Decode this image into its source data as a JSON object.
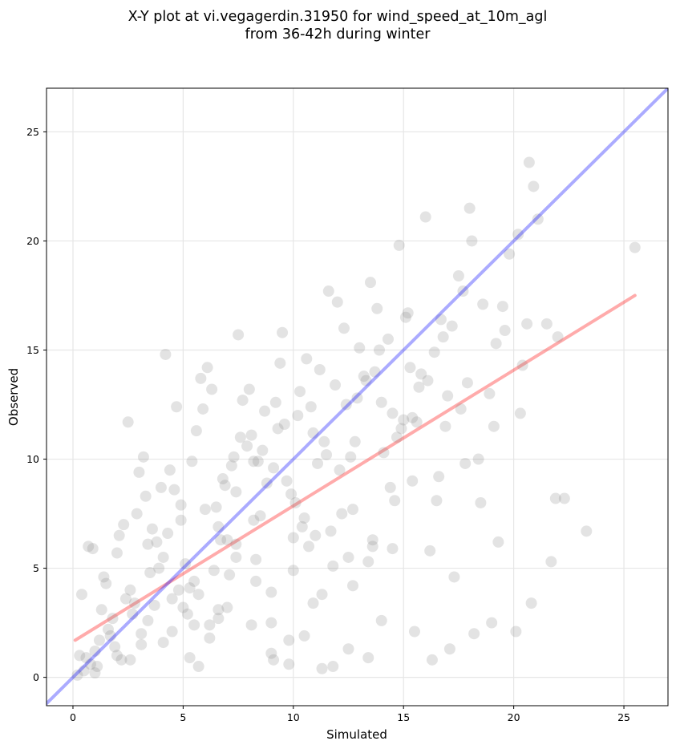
{
  "chart_data": {
    "type": "scatter",
    "title": "X-Y plot at vi.vegagerdin.31950 for wind_speed_at_10m_agl",
    "subtitle": "from 36-42h during winter",
    "xlabel": "Simulated",
    "ylabel": "Observed",
    "xlim": [
      -1.2,
      27.0
    ],
    "ylim": [
      -1.3,
      27.0
    ],
    "xticks": [
      0,
      5,
      10,
      15,
      20,
      25
    ],
    "yticks": [
      0,
      5,
      10,
      15,
      20,
      25
    ],
    "grid": true,
    "point_color": "#808080",
    "series": [
      {
        "type": "scatter",
        "x": [
          1.0,
          2.2,
          3.1,
          4.5,
          5.3,
          6.2,
          7.0,
          8.1,
          9.0,
          9.8,
          10.5,
          11.3,
          12.5,
          13.4,
          14.0,
          15.5,
          16.3,
          17.1,
          18.2,
          19.0,
          20.1,
          20.8,
          21.9,
          23.3,
          25.5,
          0.5,
          0.9,
          1.8,
          2.6,
          3.4,
          4.1,
          4.9,
          5.7,
          6.6,
          7.4,
          8.3,
          9.1,
          10.0,
          10.9,
          11.8,
          12.7,
          13.6,
          14.5,
          15.4,
          16.2,
          17.3,
          18.4,
          19.3,
          20.3,
          21.7,
          0.3,
          1.3,
          2.0,
          2.9,
          3.7,
          4.6,
          5.5,
          6.4,
          7.3,
          8.2,
          9.2,
          10.1,
          11.0,
          11.9,
          12.8,
          13.7,
          14.6,
          15.6,
          16.6,
          17.7,
          18.9,
          20.6,
          0.7,
          1.6,
          2.4,
          3.2,
          4.0,
          4.8,
          5.6,
          6.5,
          7.2,
          8.0,
          8.8,
          9.6,
          10.4,
          11.2,
          12.1,
          13.0,
          14.1,
          15.2,
          16.1,
          17.0,
          18.0,
          19.6,
          20.9,
          22.3,
          0.2,
          1.1,
          1.9,
          2.7,
          3.5,
          4.3,
          5.1,
          5.9,
          6.8,
          7.6,
          8.5,
          9.4,
          10.2,
          11.5,
          12.3,
          13.2,
          14.3,
          15.0,
          16.4,
          17.5,
          18.6,
          19.8,
          1.5,
          2.3,
          3.0,
          3.9,
          4.7,
          5.4,
          6.1,
          6.9,
          7.7,
          8.6,
          9.5,
          10.3,
          11.1,
          12.0,
          12.9,
          13.8,
          14.7,
          15.8,
          16.8,
          17.9,
          1.2,
          2.1,
          3.3,
          4.2,
          5.0,
          5.8,
          6.7,
          7.5,
          8.4,
          9.3,
          10.6,
          11.6,
          12.4,
          13.5,
          14.8,
          16.0,
          18.1,
          20.4,
          0.6,
          1.4,
          2.5,
          3.6,
          4.4,
          5.2,
          6.0,
          6.3,
          7.1,
          7.9,
          8.7,
          9.7,
          10.7,
          11.4,
          12.2,
          13.3,
          14.4,
          15.3,
          16.7,
          17.6,
          19.2,
          20.7,
          0.4,
          0.8,
          1.7,
          2.8,
          3.8,
          4.9,
          5.5,
          6.6,
          7.4,
          8.2,
          9.0,
          9.9,
          10.8,
          11.7,
          12.6,
          13.9,
          14.9,
          15.7,
          16.5,
          17.8,
          19.5,
          21.1,
          2.0,
          3.1,
          4.5,
          5.3,
          6.2,
          7.0,
          8.1,
          9.0,
          9.8,
          10.5,
          11.3,
          12.5,
          13.4,
          14.0,
          15.1,
          16.9,
          18.5,
          20.2,
          1.0,
          2.6,
          3.4,
          4.1,
          5.7,
          6.6,
          7.4,
          8.3,
          9.1,
          10.0,
          10.9,
          11.8,
          12.7,
          13.6,
          14.5,
          15.4,
          17.2,
          19.1,
          21.5,
          22.0
        ],
        "y": [
          1.2,
          0.8,
          1.5,
          2.1,
          0.9,
          1.8,
          3.2,
          2.4,
          1.1,
          0.6,
          1.9,
          0.4,
          1.3,
          0.9,
          2.6,
          2.1,
          0.8,
          1.3,
          2.0,
          2.5,
          2.1,
          3.4,
          8.2,
          6.7,
          19.7,
          0.3,
          5.9,
          2.7,
          4.0,
          6.1,
          5.5,
          7.2,
          3.8,
          6.9,
          8.5,
          4.4,
          9.6,
          6.4,
          11.2,
          5.1,
          7.7,
          6.3,
          12.1,
          9.0,
          5.8,
          4.6,
          10.0,
          6.2,
          12.1,
          5.3,
          1.0,
          3.1,
          5.7,
          7.5,
          3.3,
          8.6,
          2.4,
          4.9,
          10.1,
          7.2,
          12.6,
          8.0,
          6.5,
          13.4,
          10.8,
          14.0,
          8.1,
          11.7,
          9.2,
          17.7,
          13.0,
          16.2,
          6.0,
          2.2,
          3.6,
          10.1,
          8.7,
          4.0,
          11.3,
          7.8,
          9.7,
          13.2,
          8.9,
          11.6,
          6.9,
          14.1,
          9.5,
          15.1,
          10.3,
          16.7,
          13.6,
          12.9,
          21.5,
          15.9,
          22.5,
          8.2,
          0.1,
          0.5,
          1.4,
          2.9,
          4.8,
          6.6,
          5.2,
          12.3,
          9.1,
          11.0,
          7.4,
          14.4,
          12.0,
          10.2,
          16.0,
          13.8,
          15.5,
          11.8,
          14.9,
          18.4,
          17.1,
          19.4,
          4.3,
          7.0,
          9.4,
          5.0,
          12.4,
          9.9,
          14.2,
          8.8,
          12.7,
          10.4,
          15.8,
          13.1,
          9.8,
          17.2,
          12.8,
          16.9,
          11.0,
          13.9,
          15.6,
          13.5,
          1.7,
          6.5,
          8.3,
          14.8,
          3.2,
          13.7,
          6.3,
          15.7,
          9.9,
          11.4,
          14.6,
          17.7,
          12.5,
          18.1,
          19.8,
          21.1,
          20.0,
          14.3,
          0.9,
          4.6,
          11.7,
          6.8,
          9.5,
          2.9,
          7.7,
          13.2,
          4.7,
          10.6,
          12.2,
          9.0,
          6.0,
          10.8,
          7.5,
          13.6,
          8.7,
          14.2,
          16.4,
          12.3,
          15.3,
          23.6,
          3.8,
          0.6,
          1.9,
          3.4,
          6.2,
          7.9,
          4.4,
          2.7,
          5.5,
          9.9,
          3.9,
          8.4,
          12.4,
          6.7,
          10.1,
          15.0,
          11.4,
          13.3,
          8.1,
          9.8,
          17.0,
          21.0,
          1.0,
          2.0,
          3.6,
          4.1,
          2.4,
          6.3,
          11.1,
          2.5,
          1.7,
          7.3,
          3.8,
          5.5,
          5.3,
          12.6,
          16.5,
          11.5,
          8.0,
          20.3,
          0.2,
          0.8,
          2.6,
          1.6,
          0.5,
          3.1,
          6.1,
          5.4,
          0.8,
          4.9,
          3.4,
          0.5,
          4.2,
          6.0,
          5.9,
          11.9,
          16.1,
          11.5,
          16.2,
          15.6
        ]
      }
    ],
    "reference_lines": [
      {
        "kind": "identity",
        "from": [
          -1.2,
          -1.2
        ],
        "to": [
          27.0,
          27.0
        ],
        "color": "#0000ff"
      },
      {
        "kind": "fit",
        "from": [
          0.1,
          1.7
        ],
        "to": [
          25.5,
          17.5
        ],
        "color": "#ff0000"
      }
    ]
  }
}
